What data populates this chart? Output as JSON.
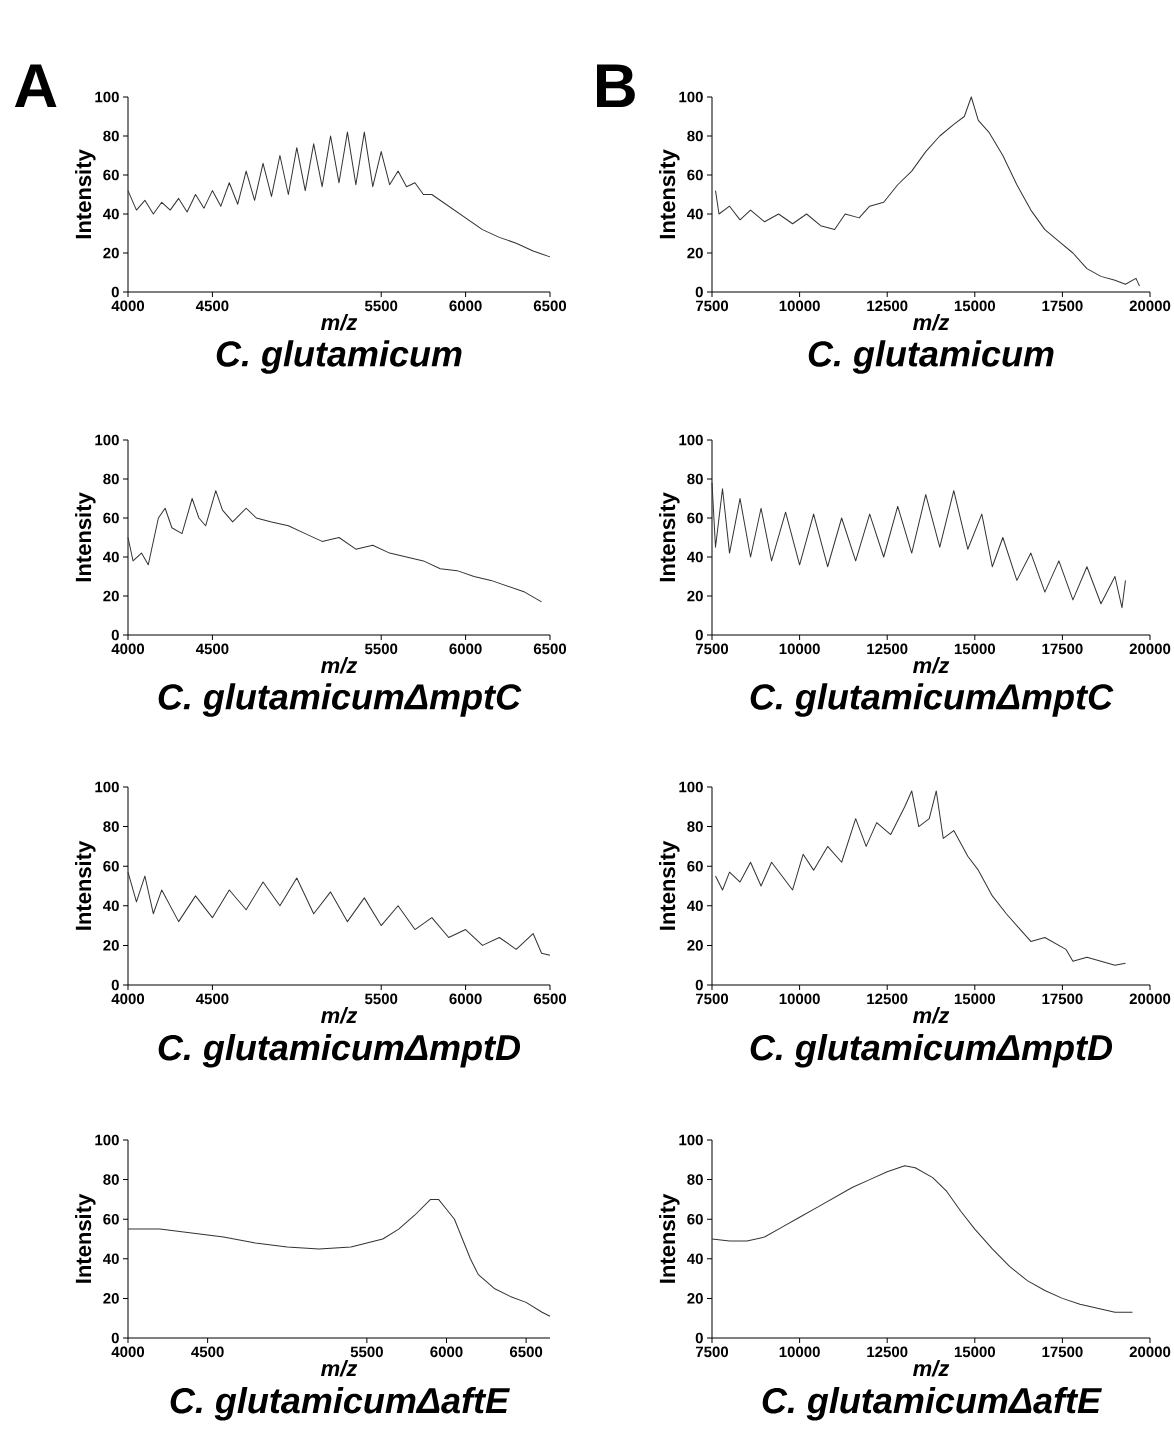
{
  "chart_data": [
    {
      "type": "line",
      "title": "C. glutamicum",
      "xlabel": "m/z",
      "ylabel": "Intensity",
      "annotations": [
        "A"
      ],
      "xlim": [
        4000,
        6500
      ],
      "ylim": [
        0,
        100
      ],
      "xticks": [
        4000,
        4500,
        5500,
        6000,
        6500
      ],
      "yticks": [
        0,
        20,
        40,
        60,
        80,
        100
      ],
      "color": "#333333",
      "x": [
        4000,
        4050,
        4100,
        4150,
        4200,
        4250,
        4300,
        4350,
        4400,
        4450,
        4500,
        4550,
        4600,
        4650,
        4700,
        4750,
        4800,
        4850,
        4900,
        4950,
        5000,
        5050,
        5100,
        5150,
        5200,
        5250,
        5300,
        5350,
        5400,
        5450,
        5500,
        5550,
        5600,
        5650,
        5700,
        5750,
        5800,
        5900,
        6000,
        6100,
        6200,
        6300,
        6400,
        6500
      ],
      "values": [
        52,
        42,
        47,
        40,
        46,
        42,
        48,
        41,
        50,
        43,
        52,
        44,
        56,
        45,
        62,
        47,
        66,
        49,
        70,
        50,
        74,
        52,
        76,
        54,
        80,
        56,
        82,
        55,
        82,
        54,
        72,
        55,
        62,
        54,
        56,
        50,
        50,
        44,
        38,
        32,
        28,
        25,
        21,
        18
      ]
    },
    {
      "type": "line",
      "title": "C. glutamicum",
      "xlabel": "m/z",
      "ylabel": "Intensity",
      "annotations": [
        "B"
      ],
      "xlim": [
        7500,
        20000
      ],
      "ylim": [
        0,
        100
      ],
      "xticks": [
        7500,
        10000,
        12500,
        15000,
        17500,
        20000
      ],
      "yticks": [
        0,
        20,
        40,
        60,
        80,
        100
      ],
      "color": "#333333",
      "x": [
        7600,
        7700,
        8000,
        8300,
        8600,
        9000,
        9400,
        9800,
        10200,
        10600,
        11000,
        11300,
        11700,
        12000,
        12400,
        12800,
        13200,
        13600,
        14000,
        14400,
        14700,
        14900,
        15100,
        15400,
        15800,
        16200,
        16600,
        17000,
        17400,
        17800,
        18200,
        18600,
        19000,
        19300,
        19600,
        19700
      ],
      "values": [
        52,
        40,
        44,
        37,
        42,
        36,
        40,
        35,
        40,
        34,
        32,
        40,
        38,
        44,
        46,
        55,
        62,
        72,
        80,
        86,
        90,
        100,
        88,
        82,
        70,
        55,
        42,
        32,
        26,
        20,
        12,
        8,
        6,
        4,
        7,
        3
      ]
    },
    {
      "type": "line",
      "title": "C. glutamicumΔmptC",
      "xlabel": "m/z",
      "ylabel": "Intensity",
      "xlim": [
        4000,
        6500
      ],
      "ylim": [
        0,
        100
      ],
      "xticks": [
        4000,
        4500,
        5500,
        6000,
        6500
      ],
      "yticks": [
        0,
        20,
        40,
        60,
        80,
        100
      ],
      "color": "#333333",
      "x": [
        4000,
        4030,
        4080,
        4120,
        4180,
        4220,
        4260,
        4320,
        4380,
        4420,
        4460,
        4520,
        4560,
        4620,
        4700,
        4760,
        4850,
        4950,
        5050,
        5150,
        5250,
        5350,
        5450,
        5550,
        5650,
        5750,
        5850,
        5950,
        6050,
        6150,
        6250,
        6350,
        6450
      ],
      "values": [
        50,
        38,
        42,
        36,
        60,
        65,
        55,
        52,
        70,
        60,
        56,
        74,
        64,
        58,
        65,
        60,
        58,
        56,
        52,
        48,
        50,
        44,
        46,
        42,
        40,
        38,
        34,
        33,
        30,
        28,
        25,
        22,
        17
      ]
    },
    {
      "type": "line",
      "title": "C. glutamicumΔmptC",
      "xlabel": "m/z",
      "ylabel": "Intensity",
      "xlim": [
        7500,
        20000
      ],
      "ylim": [
        0,
        100
      ],
      "xticks": [
        7500,
        10000,
        12500,
        15000,
        17500,
        20000
      ],
      "yticks": [
        0,
        20,
        40,
        60,
        80,
        100
      ],
      "color": "#333333",
      "x": [
        7500,
        7600,
        7800,
        8000,
        8300,
        8600,
        8900,
        9200,
        9600,
        10000,
        10400,
        10800,
        11200,
        11600,
        12000,
        12400,
        12800,
        13200,
        13600,
        14000,
        14400,
        14800,
        15200,
        15500,
        15800,
        16200,
        16600,
        17000,
        17400,
        17800,
        18200,
        18600,
        19000,
        19200,
        19300
      ],
      "values": [
        78,
        45,
        75,
        42,
        70,
        40,
        65,
        38,
        63,
        36,
        62,
        35,
        60,
        38,
        62,
        40,
        66,
        42,
        72,
        45,
        74,
        44,
        62,
        35,
        50,
        28,
        42,
        22,
        38,
        18,
        35,
        16,
        30,
        14,
        28
      ]
    },
    {
      "type": "line",
      "title": "C. glutamicumΔmptD",
      "xlabel": "m/z",
      "ylabel": "Intensity",
      "xlim": [
        4000,
        6500
      ],
      "ylim": [
        0,
        100
      ],
      "xticks": [
        4000,
        4500,
        5500,
        6000,
        6500
      ],
      "yticks": [
        0,
        20,
        40,
        60,
        80,
        100
      ],
      "color": "#333333",
      "x": [
        4000,
        4050,
        4100,
        4150,
        4200,
        4300,
        4400,
        4500,
        4600,
        4700,
        4800,
        4900,
        5000,
        5100,
        5200,
        5300,
        5400,
        5500,
        5600,
        5700,
        5800,
        5900,
        6000,
        6100,
        6200,
        6300,
        6400,
        6450,
        6500
      ],
      "values": [
        57,
        42,
        55,
        36,
        48,
        32,
        45,
        34,
        48,
        38,
        52,
        40,
        54,
        36,
        47,
        32,
        44,
        30,
        40,
        28,
        34,
        24,
        28,
        20,
        24,
        18,
        26,
        16,
        15
      ]
    },
    {
      "type": "line",
      "title": "C. glutamicumΔmptD",
      "xlabel": "m/z",
      "ylabel": "Intensity",
      "xlim": [
        7500,
        20000
      ],
      "ylim": [
        0,
        100
      ],
      "xticks": [
        7500,
        10000,
        12500,
        15000,
        17500,
        20000
      ],
      "yticks": [
        0,
        20,
        40,
        60,
        80,
        100
      ],
      "color": "#333333",
      "x": [
        7600,
        7800,
        8000,
        8300,
        8600,
        8900,
        9200,
        9500,
        9800,
        10100,
        10400,
        10800,
        11200,
        11600,
        11900,
        12200,
        12600,
        13000,
        13200,
        13400,
        13700,
        13900,
        14100,
        14400,
        14800,
        15100,
        15500,
        15900,
        16300,
        16600,
        17000,
        17600,
        17800,
        18200,
        18600,
        19000,
        19300
      ],
      "values": [
        55,
        48,
        57,
        52,
        62,
        50,
        62,
        55,
        48,
        66,
        58,
        70,
        62,
        84,
        70,
        82,
        76,
        90,
        98,
        80,
        84,
        98,
        74,
        78,
        65,
        58,
        45,
        36,
        28,
        22,
        24,
        18,
        12,
        14,
        12,
        10,
        11
      ]
    },
    {
      "type": "line",
      "title": "C. glutamicumΔaftE",
      "xlabel": "m/z",
      "ylabel": "Intensity",
      "xlim": [
        4000,
        6650
      ],
      "ylim": [
        0,
        100
      ],
      "xticks": [
        4000,
        4500,
        5500,
        6000,
        6500
      ],
      "yticks": [
        0,
        20,
        40,
        60,
        80,
        100
      ],
      "color": "#333333",
      "x": [
        4000,
        4200,
        4400,
        4600,
        4800,
        5000,
        5200,
        5400,
        5500,
        5600,
        5700,
        5800,
        5900,
        5950,
        6000,
        6050,
        6100,
        6150,
        6200,
        6300,
        6400,
        6500,
        6600,
        6650
      ],
      "values": [
        55,
        55,
        53,
        51,
        48,
        46,
        45,
        46,
        48,
        50,
        55,
        62,
        70,
        70,
        65,
        60,
        50,
        40,
        32,
        25,
        21,
        18,
        13,
        11
      ]
    },
    {
      "type": "line",
      "title": "C. glutamicumΔaftE",
      "xlabel": "m/z",
      "ylabel": "Intensity",
      "xlim": [
        7500,
        20000
      ],
      "ylim": [
        0,
        100
      ],
      "xticks": [
        7500,
        10000,
        12500,
        15000,
        17500,
        20000
      ],
      "yticks": [
        0,
        20,
        40,
        60,
        80,
        100
      ],
      "color": "#333333",
      "x": [
        7500,
        8000,
        8500,
        9000,
        9500,
        10000,
        10500,
        11000,
        11500,
        12000,
        12500,
        13000,
        13300,
        13800,
        14200,
        14600,
        15000,
        15500,
        16000,
        16500,
        17000,
        17500,
        18000,
        18500,
        19000,
        19500
      ],
      "values": [
        50,
        49,
        49,
        51,
        56,
        61,
        66,
        71,
        76,
        80,
        84,
        87,
        86,
        81,
        74,
        64,
        55,
        45,
        36,
        29,
        24,
        20,
        17,
        15,
        13,
        13
      ]
    }
  ]
}
